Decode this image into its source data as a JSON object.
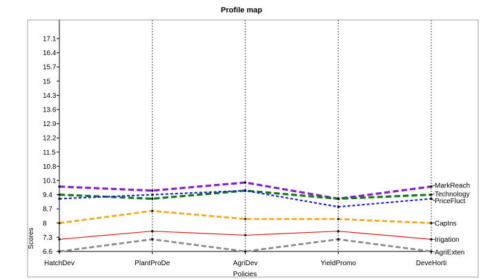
{
  "chart_data": {
    "type": "line",
    "title": "Profile map",
    "xlabel": "Policies",
    "ylabel": "Scores",
    "categories": [
      "HatchDev",
      "PlantProDe",
      "AgriDev",
      "YieldPromo",
      "DeveHorti"
    ],
    "y_ticks": [
      "6.6",
      "7.3",
      "8",
      "8.7",
      "9.4",
      "10.1",
      "10.8",
      "11.5",
      "12.2",
      "12.9",
      "13.6",
      "14.3",
      "15",
      "15.7",
      "16.4",
      "17.1"
    ],
    "ylim": [
      6.6,
      17.8
    ],
    "grid": {
      "vertical_dotted": true,
      "horizontal": false
    },
    "legend": "line-end labels at right",
    "series": [
      {
        "name": "MarkReach",
        "values": [
          9.8,
          9.6,
          10.0,
          9.2,
          9.8
        ],
        "color": "#8a1fcf",
        "style": "dashed",
        "width": 3.2
      },
      {
        "name": "Technology",
        "values": [
          9.4,
          9.2,
          9.6,
          9.2,
          9.4
        ],
        "color": "#107b10",
        "style": "dashed",
        "width": 3.2
      },
      {
        "name": "PriceFluct",
        "values": [
          9.2,
          9.4,
          9.6,
          8.8,
          9.2
        ],
        "color": "#1e1ee6",
        "style": "dotted",
        "width": 2.2
      },
      {
        "name": "CapIns",
        "values": [
          8.0,
          8.6,
          8.2,
          8.2,
          8.0
        ],
        "color": "#f7a81b",
        "style": "dashed",
        "width": 2.8
      },
      {
        "name": "Irigation",
        "values": [
          7.2,
          7.6,
          7.4,
          7.6,
          7.2
        ],
        "color": "#e01919",
        "style": "solid",
        "width": 1.2
      },
      {
        "name": "AgriExten",
        "values": [
          6.6,
          7.2,
          6.6,
          7.2,
          6.6
        ],
        "color": "#8c8c8c",
        "style": "dashed",
        "width": 2.8
      }
    ]
  }
}
